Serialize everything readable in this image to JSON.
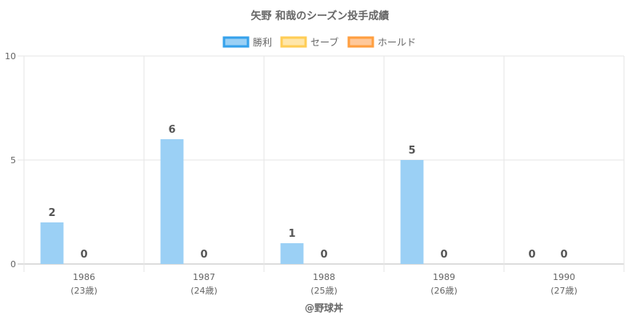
{
  "chart_data": {
    "type": "bar",
    "title": "矢野 和哉のシーズン投手成績",
    "categories": [
      "1986",
      "1987",
      "1988",
      "1989",
      "1990"
    ],
    "sublabels": [
      "(23歳)",
      "(24歳)",
      "(25歳)",
      "(26歳)",
      "(27歳)"
    ],
    "series": [
      {
        "name": "勝利",
        "values": [
          2,
          6,
          1,
          5,
          0
        ],
        "color": "#9bd0f5",
        "border": "#36a2eb"
      },
      {
        "name": "セーブ",
        "values": [
          0,
          0,
          0,
          0,
          0
        ],
        "color": "#ffe6aa",
        "border": "#ffcd56"
      },
      {
        "name": "ホールド",
        "values": [
          0,
          0,
          0,
          0,
          0
        ],
        "color": "#ffc89a",
        "border": "#ff9f40"
      }
    ],
    "data_label_values": [
      [
        2,
        0
      ],
      [
        6,
        0
      ],
      [
        1,
        0
      ],
      [
        5,
        0
      ],
      [
        0,
        0
      ]
    ],
    "ylim": [
      0,
      10
    ],
    "yticks": [
      0,
      5,
      10
    ],
    "xlabel": "@野球丼",
    "grid": true,
    "legend": "top"
  }
}
